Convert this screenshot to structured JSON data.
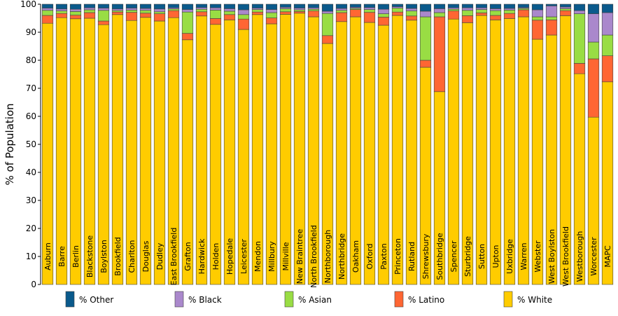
{
  "chart_data": {
    "type": "bar",
    "stacked": true,
    "ylabel": "% of Population",
    "ylim": [
      0,
      100
    ],
    "yticks": [
      0,
      10,
      20,
      30,
      40,
      50,
      60,
      70,
      80,
      90,
      100
    ],
    "grid": false,
    "legend_position": "bottom",
    "categories": [
      "Auburn",
      "Barre",
      "Berlin",
      "Blackstone",
      "Boylston",
      "Brookfield",
      "Charlton",
      "Douglas",
      "Dudley",
      "East Brookfield",
      "Grafton",
      "Hardwick",
      "Holden",
      "Hopedale",
      "Leicester",
      "Mendon",
      "Millbury",
      "Millville",
      "New Braintree",
      "North Brookfield",
      "Northborough",
      "Northbridge",
      "Oakham",
      "Oxford",
      "Paxton",
      "Princeton",
      "Rutland",
      "Shrewsbury",
      "Southbridge",
      "Spencer",
      "Sturbridge",
      "Sutton",
      "Upton",
      "Uxbridge",
      "Warren",
      "Webster",
      "West Boylston",
      "West Brookfield",
      "Westborough",
      "Worcester",
      "MAPC"
    ],
    "series": [
      {
        "name": "% White",
        "color": "#FFCC00",
        "values": [
          93.2,
          95.2,
          94.8,
          95.0,
          92.7,
          96.3,
          94.2,
          95.3,
          94.0,
          95.2,
          87.3,
          95.8,
          92.8,
          94.4,
          91.0,
          96.3,
          93.0,
          96.4,
          96.8,
          95.5,
          86.0,
          93.8,
          95.5,
          93.5,
          92.5,
          96.0,
          94.3,
          77.5,
          68.8,
          94.7,
          93.4,
          96.0,
          94.4,
          94.9,
          95.5,
          87.5,
          89.0,
          95.9,
          75.2,
          59.7,
          72.3
        ]
      },
      {
        "name": "% Latino",
        "color": "#FF6633",
        "values": [
          2.8,
          1.5,
          1.3,
          2.0,
          1.3,
          0.9,
          2.9,
          1.5,
          2.6,
          2.5,
          2.3,
          1.5,
          2.1,
          1.9,
          3.7,
          0.9,
          2.1,
          0.9,
          0.6,
          2.1,
          2.8,
          3.2,
          2.6,
          3.6,
          2.9,
          1.2,
          1.5,
          2.5,
          26.7,
          2.9,
          2.5,
          0.9,
          1.6,
          1.8,
          2.5,
          6.8,
          5.4,
          1.8,
          3.7,
          20.8,
          9.3
        ]
      },
      {
        "name": "% Asian",
        "color": "#99DD44",
        "values": [
          1.8,
          0.9,
          1.3,
          1.0,
          3.8,
          0.5,
          0.8,
          1.0,
          0.7,
          0.6,
          7.6,
          0.9,
          3.0,
          1.2,
          1.6,
          0.9,
          1.9,
          1.1,
          0.6,
          0.6,
          7.9,
          0.8,
          0.4,
          1.0,
          1.2,
          1.4,
          1.8,
          15.5,
          1.5,
          0.6,
          1.9,
          1.2,
          1.7,
          1.2,
          0.5,
          1.2,
          1.1,
          0.7,
          17.7,
          6.0,
          7.4
        ]
      },
      {
        "name": "% Black",
        "color": "#AA88CC",
        "values": [
          0.8,
          0.7,
          0.8,
          0.7,
          0.8,
          0.6,
          0.7,
          0.7,
          1.0,
          0.4,
          0.9,
          0.6,
          0.8,
          0.9,
          1.7,
          0.5,
          1.1,
          0.5,
          0.6,
          0.5,
          0.8,
          0.7,
          0.4,
          0.7,
          1.6,
          0.5,
          0.9,
          2.0,
          1.4,
          0.5,
          0.9,
          0.6,
          0.7,
          0.6,
          0.3,
          2.5,
          3.9,
          0.6,
          1.1,
          10.1,
          8.0
        ]
      },
      {
        "name": "% Other",
        "color": "#0A5A8C",
        "values": [
          1.4,
          1.7,
          1.8,
          1.3,
          1.4,
          1.7,
          1.4,
          1.5,
          1.7,
          1.3,
          1.9,
          1.2,
          1.3,
          1.6,
          2.0,
          1.4,
          1.9,
          1.1,
          1.4,
          1.3,
          2.5,
          1.5,
          1.1,
          1.2,
          1.8,
          0.9,
          1.5,
          2.5,
          1.6,
          1.3,
          1.3,
          1.3,
          1.6,
          1.5,
          1.2,
          2.0,
          0.6,
          1.0,
          2.3,
          3.4,
          3.0
        ]
      }
    ],
    "legend_order": [
      "% Other",
      "% Black",
      "% Asian",
      "% Latino",
      "% White"
    ]
  }
}
